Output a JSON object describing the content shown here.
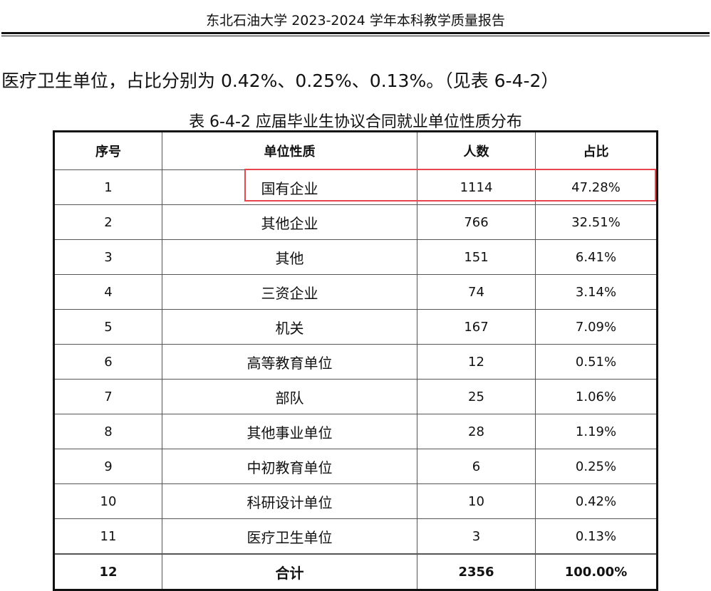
{
  "header": {
    "title": "东北石油大学 2023-2024 学年本科教学质量报告"
  },
  "paragraph": "医疗卫生单位，占比分别为 0.42%、0.25%、0.13%。（见表 6-4-2）",
  "table": {
    "caption": "表 6-4-2 应届毕业生协议合同就业单位性质分布",
    "columns": [
      "序号",
      "单位性质",
      "人数",
      "占比"
    ],
    "rows": [
      [
        "1",
        "国有企业",
        "1114",
        "47.28%"
      ],
      [
        "2",
        "其他企业",
        "766",
        "32.51%"
      ],
      [
        "3",
        "其他",
        "151",
        "6.41%"
      ],
      [
        "4",
        "三资企业",
        "74",
        "3.14%"
      ],
      [
        "5",
        "机关",
        "167",
        "7.09%"
      ],
      [
        "6",
        "高等教育单位",
        "12",
        "0.51%"
      ],
      [
        "7",
        "部队",
        "25",
        "1.06%"
      ],
      [
        "8",
        "其他事业单位",
        "28",
        "1.19%"
      ],
      [
        "9",
        "中初教育单位",
        "6",
        "0.25%"
      ],
      [
        "10",
        "科研设计单位",
        "10",
        "0.42%"
      ],
      [
        "11",
        "医疗卫生单位",
        "3",
        "0.13%"
      ]
    ],
    "total": [
      "12",
      "合计",
      "2356",
      "100.00%"
    ],
    "highlight_color": "#e8454f"
  }
}
